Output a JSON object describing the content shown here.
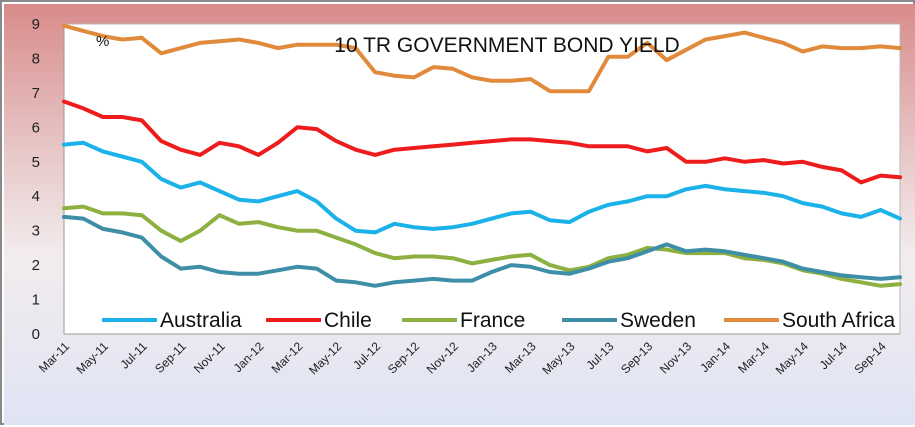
{
  "chart_data": {
    "type": "line",
    "title": "10 TR GOVERNMENT BOND YIELD",
    "ylabel": "%",
    "xlabel": "",
    "ylim": [
      0,
      9
    ],
    "yticks": [
      0,
      1,
      2,
      3,
      4,
      5,
      6,
      7,
      8,
      9
    ],
    "grid": false,
    "legend": "bottom-inside",
    "x": [
      "Mar-11",
      "Apr-11",
      "May-11",
      "Jun-11",
      "Jul-11",
      "Aug-11",
      "Sep-11",
      "Oct-11",
      "Nov-11",
      "Dec-11",
      "Jan-12",
      "Feb-12",
      "Mar-12",
      "Apr-12",
      "May-12",
      "Jun-12",
      "Jul-12",
      "Aug-12",
      "Sep-12",
      "Oct-12",
      "Nov-12",
      "Dec-12",
      "Jan-13",
      "Feb-13",
      "Mar-13",
      "Apr-13",
      "May-13",
      "Jun-13",
      "Jul-13",
      "Aug-13",
      "Sep-13",
      "Oct-13",
      "Nov-13",
      "Dec-13",
      "Jan-14",
      "Feb-14",
      "Mar-14",
      "Apr-14",
      "May-14",
      "Jun-14",
      "Jul-14",
      "Aug-14",
      "Sep-14",
      "Oct-14"
    ],
    "xtick_labels": [
      "Mar-11",
      "May-11",
      "Jul-11",
      "Sep-11",
      "Nov-11",
      "Jan-12",
      "Mar-12",
      "May-12",
      "Jul-12",
      "Sep-12",
      "Nov-12",
      "Jan-13",
      "Mar-13",
      "May-13",
      "Jul-13",
      "Sep-13",
      "Nov-13",
      "Jan-14",
      "Mar-14",
      "May-14",
      "Jul-14",
      "Sep-14"
    ],
    "series": [
      {
        "name": "Australia",
        "color": "#1ab2e8",
        "values": [
          5.5,
          5.55,
          5.3,
          5.15,
          5.0,
          4.5,
          4.25,
          4.4,
          4.15,
          3.9,
          3.85,
          4.0,
          4.15,
          3.85,
          3.35,
          3.0,
          2.95,
          3.2,
          3.1,
          3.05,
          3.1,
          3.2,
          3.35,
          3.5,
          3.55,
          3.3,
          3.25,
          3.55,
          3.75,
          3.85,
          4.0,
          4.0,
          4.2,
          4.3,
          4.2,
          4.15,
          4.1,
          4.0,
          3.8,
          3.7,
          3.5,
          3.4,
          3.6,
          3.35
        ]
      },
      {
        "name": "Chile",
        "color": "#ee1c1c",
        "values": [
          6.75,
          6.55,
          6.3,
          6.3,
          6.2,
          5.6,
          5.35,
          5.2,
          5.55,
          5.45,
          5.2,
          5.55,
          6.0,
          5.95,
          5.6,
          5.35,
          5.2,
          5.35,
          5.4,
          5.45,
          5.5,
          5.55,
          5.6,
          5.65,
          5.65,
          5.6,
          5.55,
          5.45,
          5.45,
          5.45,
          5.3,
          5.4,
          5.0,
          5.0,
          5.1,
          5.0,
          5.05,
          4.95,
          5.0,
          4.85,
          4.75,
          4.4,
          4.6,
          4.55
        ]
      },
      {
        "name": "France",
        "color": "#8db040",
        "values": [
          3.65,
          3.7,
          3.5,
          3.5,
          3.45,
          3.0,
          2.7,
          3.0,
          3.45,
          3.2,
          3.25,
          3.1,
          3.0,
          3.0,
          2.8,
          2.6,
          2.35,
          2.2,
          2.25,
          2.25,
          2.2,
          2.05,
          2.15,
          2.25,
          2.3,
          2.0,
          1.85,
          1.95,
          2.2,
          2.3,
          2.5,
          2.45,
          2.35,
          2.35,
          2.35,
          2.2,
          2.15,
          2.05,
          1.85,
          1.75,
          1.6,
          1.5,
          1.4,
          1.45
        ]
      },
      {
        "name": "Sweden",
        "color": "#3f8ea8",
        "values": [
          3.4,
          3.35,
          3.05,
          2.95,
          2.8,
          2.25,
          1.9,
          1.95,
          1.8,
          1.75,
          1.75,
          1.85,
          1.95,
          1.9,
          1.55,
          1.5,
          1.4,
          1.5,
          1.55,
          1.6,
          1.55,
          1.55,
          1.8,
          2.0,
          1.95,
          1.8,
          1.75,
          1.9,
          2.1,
          2.2,
          2.4,
          2.6,
          2.4,
          2.45,
          2.4,
          2.3,
          2.2,
          2.1,
          1.9,
          1.8,
          1.7,
          1.65,
          1.6,
          1.65
        ]
      },
      {
        "name": "South Africa",
        "color": "#e08a3c",
        "values": [
          8.95,
          8.8,
          8.65,
          8.55,
          8.6,
          8.15,
          8.3,
          8.45,
          8.5,
          8.55,
          8.45,
          8.3,
          8.4,
          8.4,
          8.4,
          8.3,
          7.6,
          7.5,
          7.45,
          7.75,
          7.7,
          7.45,
          7.35,
          7.35,
          7.4,
          7.05,
          7.05,
          7.05,
          8.05,
          8.05,
          8.45,
          7.95,
          8.25,
          8.55,
          8.65,
          8.75,
          8.6,
          8.45,
          8.2,
          8.35,
          8.3,
          8.3,
          8.35,
          8.3
        ]
      }
    ]
  }
}
